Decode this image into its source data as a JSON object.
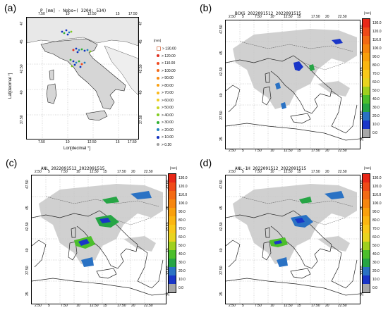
{
  "panels": {
    "a": {
      "letter": "(a)",
      "title": "P [mm] - Nobs=( 3204:  534)",
      "xlabel": "Lon[decimal °]",
      "ylabel": "Lat[decimal °]",
      "xticks_top": [
        "7.50",
        "10",
        "12.50",
        "15",
        "17.50"
      ],
      "xticks_bottom": [
        "7.50",
        "10",
        "12.50",
        "15",
        "17.50"
      ],
      "yticks_left": [
        "37.50",
        "40",
        "42.50",
        "45",
        "47"
      ],
      "yticks_right": [
        "37.50",
        "40",
        "42.50",
        "45",
        "47"
      ],
      "legend_unit": "[mm]",
      "legend": [
        {
          "label": "> 130.00",
          "color": "#ffffff",
          "square": true
        },
        {
          "label": "> 120.00",
          "color": "#e03020"
        },
        {
          "label": "> 110.00",
          "color": "#f04a20"
        },
        {
          "label": "> 100.00",
          "color": "#f46a18"
        },
        {
          "label": "> 90.00",
          "color": "#f88a10"
        },
        {
          "label": ">  80.00",
          "color": "#fba010"
        },
        {
          "label": ">  70.00",
          "color": "#fbb818"
        },
        {
          "label": ">  60.00",
          "color": "#f0cc20"
        },
        {
          "label": ">  50.00",
          "color": "#c8d420"
        },
        {
          "label": ">  40.00",
          "color": "#80cc20"
        },
        {
          "label": ">  30.00",
          "color": "#30b030"
        },
        {
          "label": ">  20.00",
          "color": "#2080c0"
        },
        {
          "label": ">  10.00",
          "color": "#1030c0"
        },
        {
          "label": ">   0.20",
          "color": "#a0a0a0"
        }
      ]
    },
    "b": {
      "letter": "(b)",
      "title": "BCKG 2022091512_2022091515",
      "xticks_top": [
        "2.50",
        "5",
        "7.50",
        "10",
        "12.50",
        "15",
        "17.50",
        "20",
        "22.50"
      ],
      "xticks_bottom": [
        "2.50",
        "5",
        "7.50",
        "10",
        "12.50",
        "15",
        "17.50",
        "20",
        "22.50"
      ],
      "yticks_left": [
        "35",
        "37.50",
        "40",
        "42.50",
        "45",
        "47.50"
      ],
      "yticks_right": [
        "35",
        "37.50",
        "40",
        "42.50",
        "45",
        "47.50"
      ]
    },
    "c": {
      "letter": "(c)",
      "title": "ANL 2022091512_2022091515",
      "xticks_top": [
        "2.50",
        "5",
        "7.50",
        "10",
        "12.50",
        "15",
        "17.50",
        "20",
        "22.50"
      ],
      "xticks_bottom": [
        "2.50",
        "5",
        "7.50",
        "10",
        "12.50",
        "15",
        "17.50",
        "20",
        "22.50"
      ],
      "yticks_left": [
        "35",
        "37.50",
        "40",
        "42.50",
        "45",
        "47.50"
      ],
      "yticks_right": [
        "35",
        "37.50",
        "40",
        "42.50",
        "45",
        "47.50"
      ]
    },
    "d": {
      "letter": "(d)",
      "title": "ANL-1H 2022091512_2022091515",
      "xticks_top": [
        "2.50",
        "5",
        "7.50",
        "10",
        "12.50",
        "15",
        "17.50",
        "20",
        "22.50"
      ],
      "xticks_bottom": [
        "2.50",
        "5",
        "7.50",
        "10",
        "12.50",
        "15",
        "17.50",
        "20",
        "22.50"
      ],
      "yticks_left": [
        "35",
        "37.50",
        "40",
        "42.50",
        "45",
        "47.50"
      ],
      "yticks_right": [
        "35",
        "37.50",
        "40",
        "42.50",
        "45",
        "47.50"
      ]
    }
  },
  "colorbar": {
    "unit": "[mm]",
    "labels": [
      "130.0",
      "120.0",
      "110.0",
      "100.0",
      "90.0",
      "80.0",
      "70.0",
      "60.0",
      "50.0",
      "40.0",
      "30.0",
      "20.0",
      "10.0",
      "0.0"
    ],
    "colors": [
      "#e82818",
      "#ef4a18",
      "#f36a14",
      "#f6860f",
      "#f9a00c",
      "#fbb611",
      "#f9c91a",
      "#e8d41f",
      "#9fd01f",
      "#4cbf2c",
      "#26a545",
      "#2a72c4",
      "#1a36c8",
      "#a8a8a8"
    ]
  }
}
